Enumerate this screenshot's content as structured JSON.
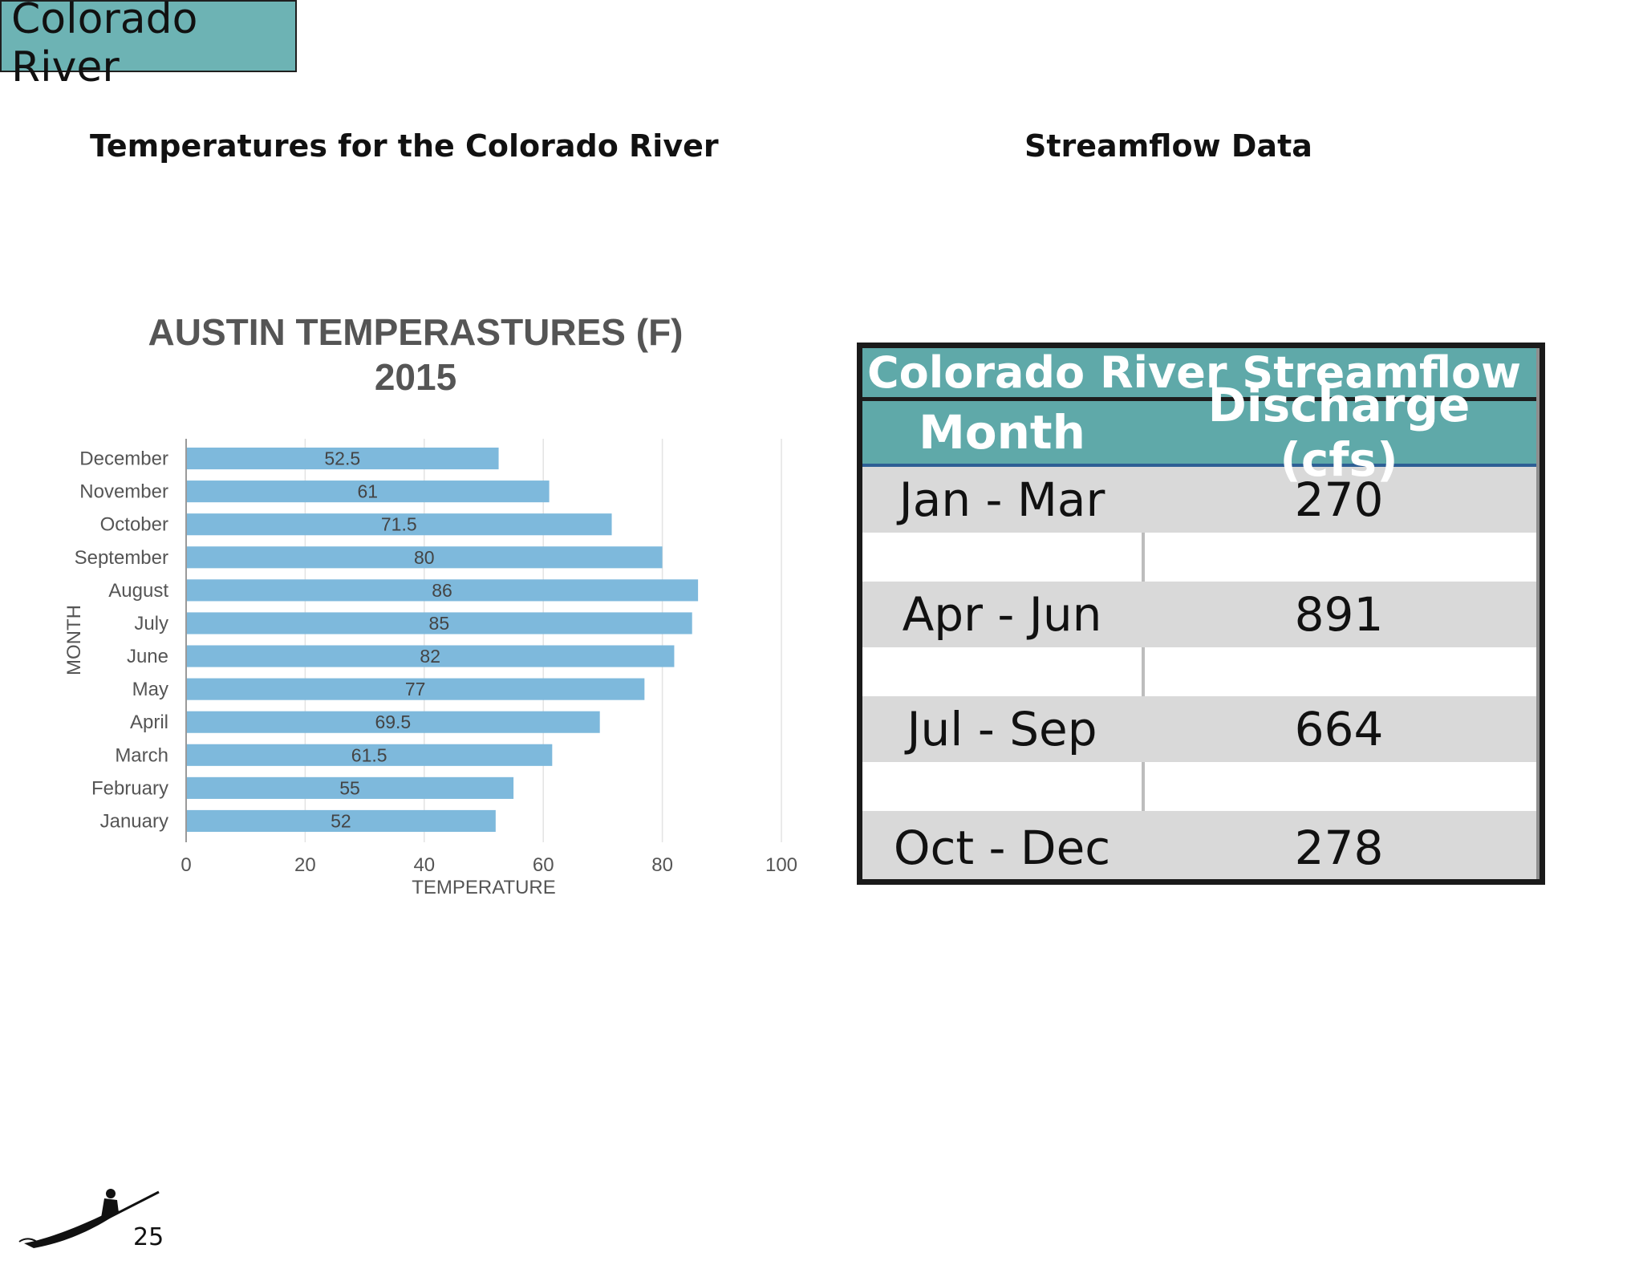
{
  "header": {
    "title": "Colorado River"
  },
  "sections": {
    "left_heading": "Temperatures for the Colorado River",
    "right_heading": "Streamflow Data"
  },
  "chart_data": {
    "type": "bar",
    "orientation": "horizontal",
    "title": "AUSTIN TEMPERASTURES (F)",
    "subtitle": "2015",
    "xlabel": "TEMPERATURE",
    "ylabel": "MONTH",
    "categories": [
      "December",
      "November",
      "October",
      "September",
      "August",
      "July",
      "June",
      "May",
      "April",
      "March",
      "February",
      "January"
    ],
    "values": [
      52.5,
      61,
      71.5,
      80,
      86,
      85,
      82,
      77,
      69.5,
      61.5,
      55,
      52
    ],
    "xlim": [
      0,
      100
    ],
    "xticks": [
      0,
      20,
      40,
      60,
      80,
      100
    ],
    "grid": true,
    "bar_color": "#7eb9dc"
  },
  "streamflow_table": {
    "title": "Colorado River Streamflow",
    "columns": [
      "Month",
      "Discharge (cfs)"
    ],
    "rows": [
      {
        "month": "Jan - Mar",
        "discharge": "270"
      },
      {
        "month": "Apr - Jun",
        "discharge": "891"
      },
      {
        "month": "Jul - Sep",
        "discharge": "664"
      },
      {
        "month": "Oct - Dec",
        "discharge": "278"
      }
    ],
    "header_color": "#5fa9a9",
    "row_color": "#d9d9d9"
  },
  "footer": {
    "page_number": "25",
    "logo_icon": "kayaker-icon"
  }
}
